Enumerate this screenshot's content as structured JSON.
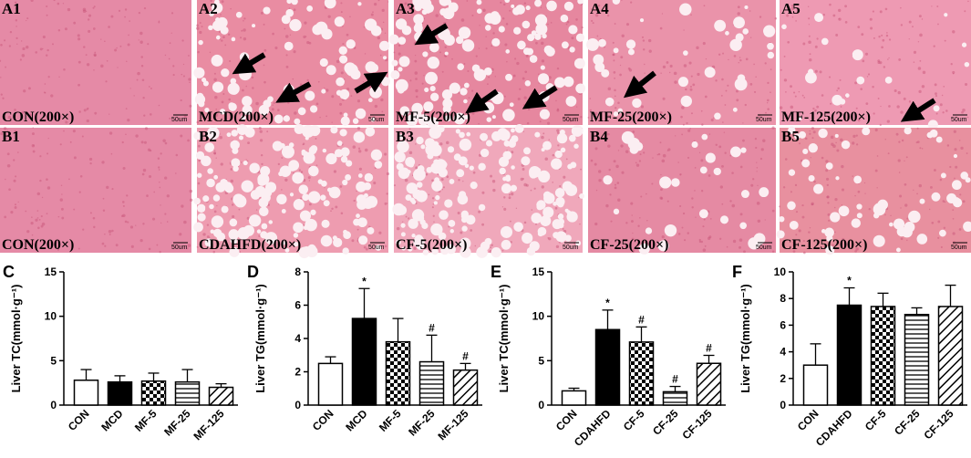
{
  "panels": [
    {
      "label": "A1",
      "caption": "CON(200×)",
      "scale": "50um"
    },
    {
      "label": "A2",
      "caption": "MCD(200×)",
      "scale": "50um"
    },
    {
      "label": "A3",
      "caption": "MF-5(200×)",
      "scale": "50um"
    },
    {
      "label": "A4",
      "caption": "MF-25(200×)",
      "scale": "50um"
    },
    {
      "label": "A5",
      "caption": "MF-125(200×)",
      "scale": "50um"
    },
    {
      "label": "B1",
      "caption": "CON(200×)",
      "scale": "50um"
    },
    {
      "label": "B2",
      "caption": "CDAHFD(200×)",
      "scale": "50um"
    },
    {
      "label": "B3",
      "caption": "CF-5(200×)",
      "scale": "50um"
    },
    {
      "label": "B4",
      "caption": "CF-25(200×)",
      "scale": "50um"
    },
    {
      "label": "B5",
      "caption": "CF-125(200×)",
      "scale": "50um"
    }
  ],
  "chart_data": [
    {
      "type": "bar",
      "panel_label": "C",
      "y_label": "Liver TC(mmol·g⁻¹)",
      "categories": [
        "CON",
        "MCD",
        "MF-5",
        "MF-25",
        "MF-125"
      ],
      "values": [
        2.8,
        2.6,
        2.7,
        2.6,
        2.0
      ],
      "errors": [
        1.2,
        0.7,
        0.9,
        1.4,
        0.4
      ],
      "annotations": [
        null,
        null,
        null,
        null,
        null
      ],
      "patterns": [
        "none",
        "solid",
        "checker",
        "horizontal",
        "diagonal"
      ],
      "color": "#000000",
      "ylim": [
        0,
        15
      ],
      "yticks": [
        0,
        5,
        10,
        15
      ]
    },
    {
      "type": "bar",
      "panel_label": "D",
      "y_label": "Liver TG(mmol·g⁻¹)",
      "categories": [
        "CON",
        "MCD",
        "MF-5",
        "MF-25",
        "MF-125"
      ],
      "values": [
        2.5,
        5.2,
        3.8,
        2.6,
        2.1
      ],
      "errors": [
        0.4,
        1.8,
        1.4,
        1.6,
        0.4
      ],
      "annotations": [
        null,
        "*",
        null,
        "#",
        "#"
      ],
      "patterns": [
        "none",
        "solid",
        "checker",
        "horizontal",
        "diagonal"
      ],
      "color": "#000000",
      "ylim": [
        0,
        8
      ],
      "yticks": [
        0,
        2,
        4,
        6,
        8
      ]
    },
    {
      "type": "bar",
      "panel_label": "E",
      "y_label": "Liver TC(mmol·g⁻¹)",
      "categories": [
        "CON",
        "CDAHFD",
        "CF-5",
        "CF-25",
        "CF-125"
      ],
      "values": [
        1.6,
        8.5,
        7.1,
        1.5,
        4.7
      ],
      "errors": [
        0.3,
        2.2,
        1.7,
        0.6,
        0.9
      ],
      "annotations": [
        null,
        "*",
        "#",
        "#",
        "#"
      ],
      "patterns": [
        "none",
        "solid",
        "checker",
        "horizontal",
        "diagonal"
      ],
      "color": "#000000",
      "ylim": [
        0,
        15
      ],
      "yticks": [
        0,
        5,
        10,
        15
      ]
    },
    {
      "type": "bar",
      "panel_label": "F",
      "y_label": "Liver TG(mmol·g⁻¹)",
      "categories": [
        "CON",
        "CDAHFD",
        "CF-5",
        "CF-25",
        "CF-125"
      ],
      "values": [
        3.0,
        7.5,
        7.4,
        6.8,
        7.4
      ],
      "errors": [
        1.6,
        1.3,
        1.0,
        0.5,
        1.6
      ],
      "annotations": [
        null,
        "*",
        null,
        null,
        null
      ],
      "patterns": [
        "none",
        "solid",
        "checker",
        "horizontal",
        "diagonal"
      ],
      "color": "#000000",
      "ylim": [
        0,
        10
      ],
      "yticks": [
        0,
        2,
        4,
        6,
        8,
        10
      ]
    }
  ]
}
